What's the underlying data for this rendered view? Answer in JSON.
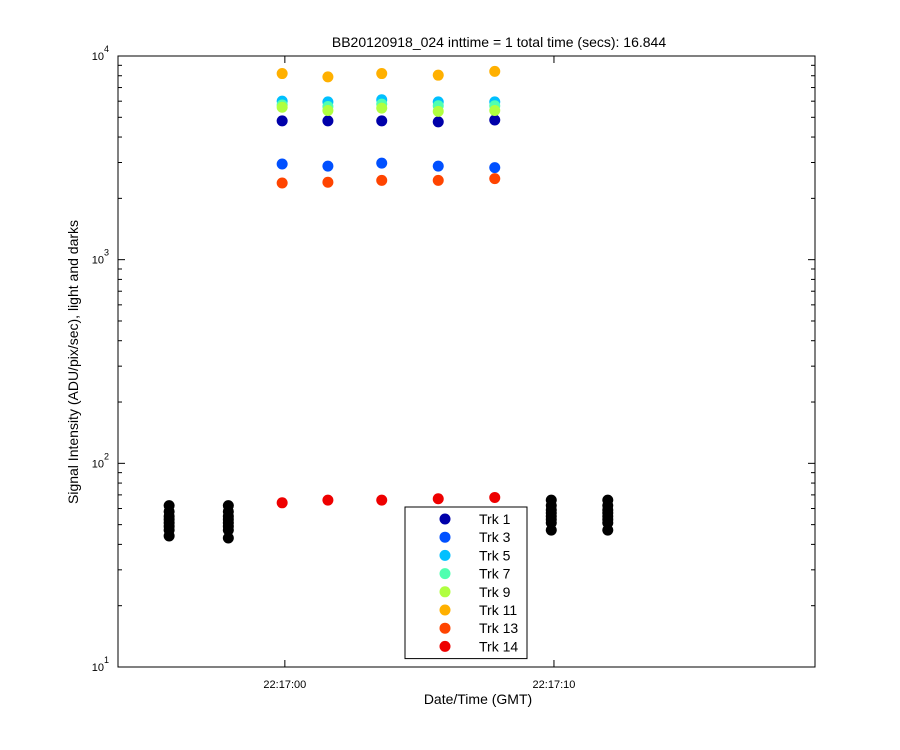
{
  "chart_data": {
    "type": "scatter",
    "title": "BB20120918_024 inttime = 1 total time (secs): 16.844",
    "xlabel": "Date/Time (GMT)",
    "ylabel": "Signal Intensity (ADU/pix/sec), light and darks",
    "y_scale": "log",
    "ylim": [
      10,
      10000
    ],
    "xlim": [
      "22:16:53.8",
      "22:17:19.7"
    ],
    "x_ticks": [
      "22:17:00",
      "22:17:10"
    ],
    "y_ticks": [
      {
        "base": "10",
        "exp": "1"
      },
      {
        "base": "10",
        "exp": "2"
      },
      {
        "base": "10",
        "exp": "3"
      },
      {
        "base": "10",
        "exp": "4"
      }
    ],
    "grid": false,
    "legend_position": "bottom-center",
    "series": [
      {
        "name": "Trk 1",
        "color": "#0000aa",
        "x": [
          "22:16:59.9",
          "22:17:01.6",
          "22:17:03.6",
          "22:17:05.7",
          "22:17:07.8"
        ],
        "y": [
          4800,
          4800,
          4800,
          4750,
          4850
        ]
      },
      {
        "name": "Trk 3",
        "color": "#0050ff",
        "x": [
          "22:16:59.9",
          "22:17:01.6",
          "22:17:03.6",
          "22:17:05.7",
          "22:17:07.8"
        ],
        "y": [
          2950,
          2880,
          2980,
          2880,
          2830
        ]
      },
      {
        "name": "Trk 5",
        "color": "#00c0ff",
        "x": [
          "22:16:59.9",
          "22:17:01.6",
          "22:17:03.6",
          "22:17:05.7",
          "22:17:07.8"
        ],
        "y": [
          6000,
          5950,
          6100,
          5950,
          5950
        ]
      },
      {
        "name": "Trk 7",
        "color": "#50ffb0",
        "x": [
          "22:16:59.9",
          "22:17:01.6",
          "22:17:03.6",
          "22:17:05.7",
          "22:17:07.8"
        ],
        "y": [
          5750,
          5650,
          5800,
          5700,
          5700
        ]
      },
      {
        "name": "Trk 9",
        "color": "#b0ff40",
        "x": [
          "22:16:59.9",
          "22:17:01.6",
          "22:17:03.6",
          "22:17:05.7",
          "22:17:07.8"
        ],
        "y": [
          5600,
          5400,
          5550,
          5350,
          5400
        ]
      },
      {
        "name": "Trk 11",
        "color": "#ffb000",
        "x": [
          "22:16:59.9",
          "22:17:01.6",
          "22:17:03.6",
          "22:17:05.7",
          "22:17:07.8"
        ],
        "y": [
          8200,
          7900,
          8200,
          8050,
          8400
        ]
      },
      {
        "name": "Trk 13",
        "color": "#ff4400",
        "x": [
          "22:16:59.9",
          "22:17:01.6",
          "22:17:03.6",
          "22:17:05.7",
          "22:17:07.8"
        ],
        "y": [
          2380,
          2400,
          2450,
          2450,
          2500
        ]
      },
      {
        "name": "Trk 14",
        "color": "#ee0000",
        "x": [
          "22:16:59.9",
          "22:17:01.6",
          "22:17:03.6",
          "22:17:05.7",
          "22:17:07.8"
        ],
        "y": [
          64,
          66,
          66,
          67,
          68
        ]
      }
    ],
    "dark_frames": {
      "color": "#000000",
      "x": [
        "22:16:55.7",
        "22:16:57.9",
        "22:17:09.9",
        "22:17:12.0"
      ],
      "y": [
        [
          44,
          47,
          49,
          51,
          53,
          55,
          58,
          62
        ],
        [
          43,
          47,
          49,
          51,
          53,
          55,
          58,
          62
        ],
        [
          47,
          51,
          53,
          55,
          57,
          59,
          62,
          66
        ],
        [
          47,
          51,
          53,
          55,
          57,
          59,
          62,
          66
        ]
      ]
    }
  }
}
